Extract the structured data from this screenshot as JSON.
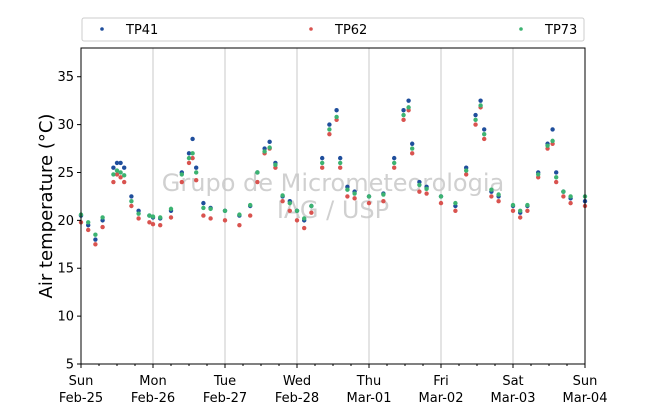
{
  "chart_data": {
    "type": "scatter",
    "ylabel": "Air temperature (°C)",
    "ylim": [
      5,
      38
    ],
    "yticks": [
      5,
      10,
      15,
      20,
      25,
      30,
      35
    ],
    "x_day_range": [
      0,
      7
    ],
    "xticks": [
      {
        "day": "Sun",
        "date": "Feb-25"
      },
      {
        "day": "Mon",
        "date": "Feb-26"
      },
      {
        "day": "Tue",
        "date": "Feb-27"
      },
      {
        "day": "Wed",
        "date": "Feb-28"
      },
      {
        "day": "Thu",
        "date": "Mar-01"
      },
      {
        "day": "Fri",
        "date": "Mar-02"
      },
      {
        "day": "Sat",
        "date": "Mar-03"
      },
      {
        "day": "Sun",
        "date": "Mar-04"
      }
    ],
    "grid": "vertical-major",
    "legend_position": "top",
    "watermark": [
      "Grupo de Micrometeorologia",
      "IAG / USP"
    ],
    "series": [
      {
        "name": "TP41",
        "color": "#1f4e9c",
        "x": [
          0,
          0.1,
          0.2,
          0.3,
          0.45,
          0.5,
          0.55,
          0.6,
          0.7,
          0.8,
          0.95,
          1.0,
          1.1,
          1.25,
          1.4,
          1.5,
          1.55,
          1.6,
          1.7,
          1.8,
          2.0,
          2.2,
          2.35,
          2.45,
          2.55,
          2.62,
          2.7,
          2.8,
          2.9,
          3.0,
          3.1,
          3.2,
          3.35,
          3.45,
          3.55,
          3.6,
          3.7,
          3.8,
          4.0,
          4.2,
          4.35,
          4.48,
          4.55,
          4.6,
          4.7,
          4.8,
          5.0,
          5.2,
          5.35,
          5.48,
          5.55,
          5.6,
          5.7,
          5.8,
          6.0,
          6.1,
          6.2,
          6.35,
          6.48,
          6.55,
          6.6,
          6.7,
          6.8,
          7.0
        ],
        "y": [
          20.5,
          19.5,
          18.0,
          20.0,
          25.5,
          26.0,
          26.0,
          25.5,
          22.5,
          21.0,
          20.5,
          20.3,
          20.2,
          21.0,
          25.0,
          27.0,
          28.5,
          25.5,
          21.8,
          21.3,
          21.0,
          20.5,
          21.5,
          25.0,
          27.5,
          28.2,
          26.0,
          22.5,
          22.0,
          21.0,
          20.0,
          21.5,
          26.5,
          30.0,
          31.5,
          26.5,
          23.5,
          23.0,
          22.5,
          22.8,
          26.5,
          31.5,
          32.5,
          28.0,
          24.0,
          23.5,
          22.5,
          21.5,
          25.5,
          31.0,
          32.5,
          29.5,
          23.0,
          22.5,
          21.5,
          20.8,
          21.5,
          25.0,
          28.0,
          29.5,
          25.0,
          23.0,
          22.3,
          22.0
        ]
      },
      {
        "name": "TP62",
        "color": "#d9534f",
        "x": [
          0,
          0.1,
          0.2,
          0.3,
          0.45,
          0.5,
          0.55,
          0.6,
          0.7,
          0.8,
          0.95,
          1.0,
          1.1,
          1.25,
          1.4,
          1.5,
          1.55,
          1.6,
          1.7,
          1.8,
          2.0,
          2.2,
          2.35,
          2.45,
          2.55,
          2.62,
          2.7,
          2.8,
          2.9,
          3.0,
          3.1,
          3.2,
          3.35,
          3.45,
          3.55,
          3.6,
          3.7,
          3.8,
          4.0,
          4.2,
          4.35,
          4.48,
          4.55,
          4.6,
          4.7,
          4.8,
          5.0,
          5.2,
          5.35,
          5.48,
          5.55,
          5.6,
          5.7,
          5.8,
          6.0,
          6.1,
          6.2,
          6.35,
          6.48,
          6.55,
          6.6,
          6.7,
          6.8,
          7.0
        ],
        "y": [
          19.8,
          19.0,
          17.5,
          19.3,
          24.0,
          24.8,
          24.5,
          24.0,
          21.5,
          20.2,
          19.8,
          19.6,
          19.5,
          20.3,
          24.0,
          26.0,
          26.5,
          24.2,
          20.5,
          20.2,
          20.0,
          19.5,
          20.5,
          24.0,
          27.0,
          27.5,
          25.5,
          22.0,
          21.0,
          20.0,
          19.2,
          20.8,
          25.5,
          29.0,
          30.5,
          25.5,
          22.5,
          22.3,
          21.8,
          22.0,
          25.5,
          30.5,
          31.5,
          27.0,
          23.0,
          22.8,
          21.8,
          21.0,
          24.8,
          30.0,
          31.8,
          28.5,
          22.5,
          22.0,
          21.0,
          20.3,
          21.0,
          24.5,
          27.5,
          28.0,
          24.0,
          22.5,
          21.8,
          21.5
        ]
      },
      {
        "name": "TP73",
        "color": "#3cb371",
        "x": [
          0,
          0.1,
          0.2,
          0.3,
          0.45,
          0.5,
          0.55,
          0.6,
          0.7,
          0.8,
          0.95,
          1.0,
          1.1,
          1.25,
          1.4,
          1.5,
          1.55,
          1.6,
          1.7,
          1.8,
          2.0,
          2.2,
          2.35,
          2.45,
          2.55,
          2.62,
          2.7,
          2.8,
          2.9,
          3.0,
          3.1,
          3.2,
          3.35,
          3.45,
          3.55,
          3.6,
          3.7,
          3.8,
          4.0,
          4.2,
          4.35,
          4.48,
          4.55,
          4.6,
          4.7,
          4.8,
          5.0,
          5.2,
          5.35,
          5.48,
          5.55,
          5.6,
          5.7,
          5.8,
          6.0,
          6.1,
          6.2,
          6.35,
          6.48,
          6.55,
          6.6,
          6.7,
          6.8,
          7.0
        ],
        "y": [
          20.6,
          19.8,
          18.5,
          20.3,
          24.8,
          25.2,
          25.0,
          24.7,
          22.0,
          20.7,
          20.5,
          20.4,
          20.3,
          21.2,
          24.8,
          26.5,
          27.0,
          25.0,
          21.3,
          21.2,
          21.0,
          20.6,
          21.6,
          25.0,
          27.2,
          27.6,
          25.8,
          22.6,
          21.8,
          21.0,
          20.2,
          21.5,
          26.0,
          29.5,
          30.8,
          26.0,
          23.2,
          22.8,
          22.5,
          22.7,
          26.0,
          31.0,
          31.8,
          27.5,
          23.7,
          23.3,
          22.5,
          21.8,
          25.2,
          30.5,
          32.0,
          29.0,
          23.2,
          22.7,
          21.6,
          21.0,
          21.6,
          24.8,
          27.8,
          28.3,
          24.5,
          23.0,
          22.5,
          22.5
        ]
      }
    ]
  }
}
